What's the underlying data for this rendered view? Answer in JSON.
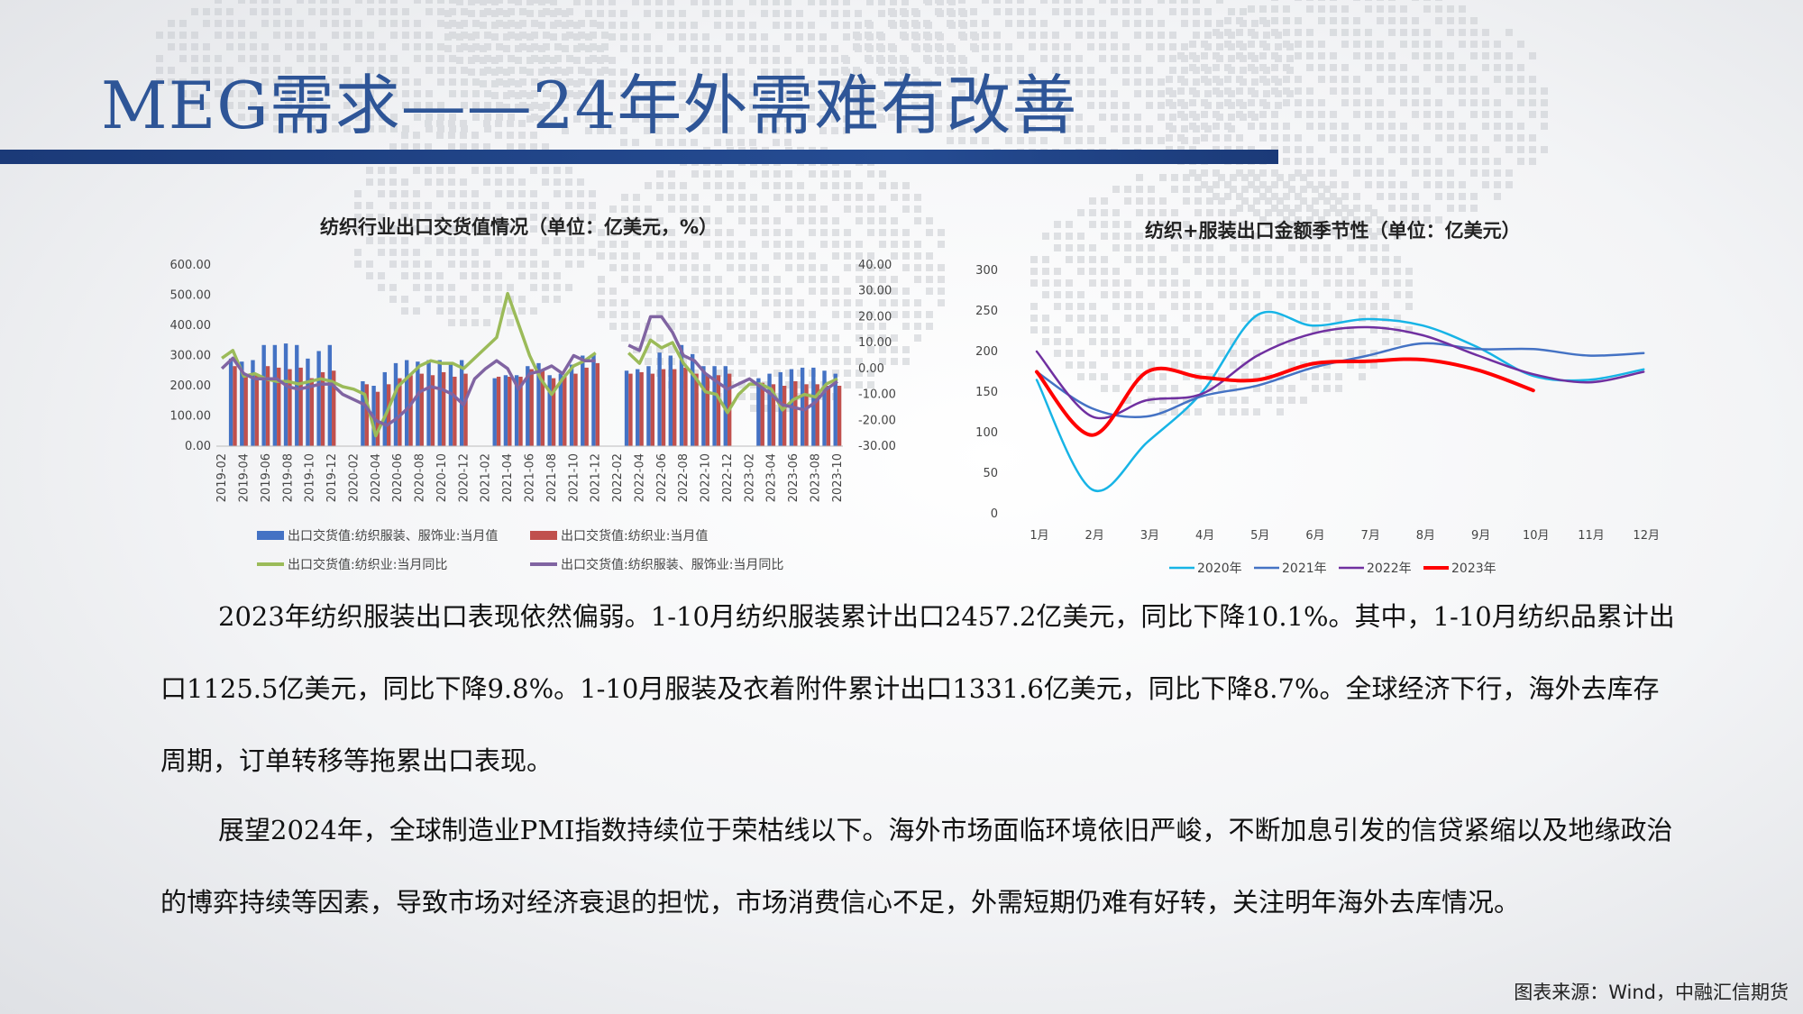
{
  "page": {
    "title": "MEG需求——24年外需难有改善",
    "paragraph1": "2023年纺织服装出口表现依然偏弱。1-10月纺织服装累计出口2457.2亿美元，同比下降10.1%。其中，1-10月纺织品累计出口1125.5亿美元，同比下降9.8%。1-10月服装及衣着附件累计出口1331.6亿美元，同比下降8.7%。全球经济下行，海外去库存周期，订单转移等拖累出口表现。",
    "paragraph2": "展望2024年，全球制造业PMI指数持续位于荣枯线以下。海外市场面临环境依旧严峻，不断加息引发的信贷紧缩以及地缘政治的博弈持续等因素，导致市场对经济衰退的担忧，市场消费信心不足，外需短期仍难有好转，关注明年海外去库情况。",
    "source": "图表来源：Wind，中融汇信期货"
  },
  "colors": {
    "title": "#2e5597",
    "blue_bar": "#4472c4",
    "red_bar": "#c0504d",
    "green_line": "#9bbb59",
    "purple_line": "#8064a2",
    "y2020": "#17b4e6",
    "y2021": "#4472c4",
    "y2022": "#7030a0",
    "y2023": "#ff0000"
  },
  "chart_data": [
    {
      "type": "bar",
      "title": "纺织行业出口交货值情况（单位：亿美元，%）",
      "categories": [
        "2019-02",
        "2019-03",
        "2019-04",
        "2019-05",
        "2019-06",
        "2019-07",
        "2019-08",
        "2019-09",
        "2019-10",
        "2019-11",
        "2019-12",
        "2020-01",
        "2020-02",
        "2020-03",
        "2020-04",
        "2020-05",
        "2020-06",
        "2020-07",
        "2020-08",
        "2020-09",
        "2020-10",
        "2020-11",
        "2020-12",
        "2021-01",
        "2021-02",
        "2021-03",
        "2021-04",
        "2021-05",
        "2021-06",
        "2021-07",
        "2021-08",
        "2021-09",
        "2021-10",
        "2021-11",
        "2021-12",
        "2022-01",
        "2022-02",
        "2022-03",
        "2022-04",
        "2022-05",
        "2022-06",
        "2022-07",
        "2022-08",
        "2022-09",
        "2022-10",
        "2022-11",
        "2022-12",
        "2023-01",
        "2023-02",
        "2023-03",
        "2023-04",
        "2023-05",
        "2023-06",
        "2023-07",
        "2023-08",
        "2023-09",
        "2023-10"
      ],
      "x_tick_labels": [
        "2019-02",
        "2019-04",
        "2019-06",
        "2019-08",
        "2019-10",
        "2019-12",
        "2020-02",
        "2020-04",
        "2020-06",
        "2020-08",
        "2020-10",
        "2020-12",
        "2021-02",
        "2021-04",
        "2021-06",
        "2021-08",
        "2021-10",
        "2021-12",
        "2022-02",
        "2022-04",
        "2022-06",
        "2022-08",
        "2022-10",
        "2022-12",
        "2023-02",
        "2023-04",
        "2023-06",
        "2023-08",
        "2023-10"
      ],
      "y_left_ticks": [
        "600.00",
        "500.00",
        "400.00",
        "300.00",
        "200.00",
        "100.00",
        "0.00"
      ],
      "y_right_ticks": [
        "40.00",
        "30.00",
        "20.00",
        "10.00",
        "0.00",
        "-10.00",
        "-20.00",
        "-30.00"
      ],
      "ylim_left": [
        0,
        600
      ],
      "ylim_right": [
        -30,
        40
      ],
      "series": [
        {
          "name": "出口交货值:纺织服装、服饰业:当月值",
          "kind": "bar",
          "axis": "left",
          "values": [
            null,
            290,
            280,
            285,
            335,
            335,
            340,
            335,
            290,
            315,
            335,
            null,
            null,
            215,
            200,
            245,
            275,
            285,
            280,
            285,
            285,
            275,
            285,
            null,
            null,
            225,
            235,
            235,
            265,
            275,
            235,
            240,
            270,
            300,
            305,
            null,
            null,
            250,
            255,
            265,
            310,
            300,
            335,
            305,
            265,
            265,
            265,
            null,
            null,
            225,
            240,
            245,
            255,
            260,
            260,
            250,
            240
          ]
        },
        {
          "name": "出口交货值:纺织业:当月值",
          "kind": "bar",
          "axis": "left",
          "values": [
            null,
            265,
            235,
            240,
            265,
            260,
            255,
            260,
            225,
            245,
            250,
            null,
            null,
            205,
            180,
            205,
            225,
            235,
            240,
            235,
            245,
            230,
            240,
            null,
            null,
            230,
            230,
            230,
            255,
            250,
            225,
            230,
            240,
            260,
            275,
            null,
            null,
            240,
            245,
            240,
            255,
            255,
            260,
            240,
            235,
            235,
            240,
            null,
            null,
            210,
            205,
            200,
            215,
            205,
            205,
            200,
            200
          ]
        },
        {
          "name": "出口交货值:纺织业:当月同比",
          "kind": "line",
          "axis": "right",
          "values": [
            4,
            7,
            -3,
            -2,
            -4,
            -5,
            -5,
            -6,
            -5,
            -4,
            -5,
            -7,
            -8,
            -10,
            -26,
            -17,
            -7,
            -3,
            1,
            3,
            2,
            2,
            0,
            4,
            8,
            12,
            29,
            17,
            5,
            -4,
            -10,
            -4,
            1,
            3,
            6,
            null,
            null,
            6,
            2,
            11,
            8,
            10,
            2,
            -3,
            -9,
            -10,
            -17,
            -10,
            -6,
            -6,
            -8,
            -16,
            -12,
            -10,
            -11,
            -6,
            -4
          ]
        },
        {
          "name": "出口交货值:纺织服装、服饰业:当月同比",
          "kind": "line",
          "axis": "right",
          "values": [
            0,
            4,
            -2,
            -4,
            -4,
            -4,
            -7,
            -8,
            -7,
            -6,
            -6,
            -10,
            -12,
            -14,
            -20,
            -22,
            -19,
            -15,
            -9,
            -7,
            -8,
            -10,
            -14,
            -4,
            0,
            3,
            0,
            -8,
            -2,
            -1,
            1,
            -2,
            5,
            3,
            3,
            null,
            null,
            9,
            7,
            20,
            20,
            14,
            5,
            3,
            -2,
            -5,
            -8,
            -6,
            -4,
            -7,
            -10,
            -14,
            -15,
            -16,
            -13,
            -8,
            -5
          ]
        }
      ]
    },
    {
      "type": "line",
      "title": "纺织+服装出口金额季节性（单位：亿美元）",
      "categories": [
        "1月",
        "2月",
        "3月",
        "4月",
        "5月",
        "6月",
        "7月",
        "8月",
        "9月",
        "10月",
        "11月",
        "12月"
      ],
      "y_ticks": [
        "300",
        "250",
        "200",
        "150",
        "100",
        "50",
        "0"
      ],
      "ylim": [
        0,
        300
      ],
      "series": [
        {
          "name": "2020年",
          "values": [
            165,
            30,
            88,
            150,
            245,
            232,
            240,
            232,
            205,
            170,
            165,
            178
          ]
        },
        {
          "name": "2021年",
          "values": [
            175,
            130,
            120,
            145,
            158,
            180,
            195,
            210,
            203,
            203,
            195,
            198
          ]
        },
        {
          "name": "2022年",
          "values": [
            200,
            120,
            140,
            148,
            195,
            222,
            230,
            220,
            195,
            172,
            162,
            175
          ]
        },
        {
          "name": "2023年",
          "values": [
            175,
            97,
            175,
            168,
            165,
            185,
            188,
            190,
            177,
            152,
            null,
            null
          ]
        }
      ]
    }
  ]
}
